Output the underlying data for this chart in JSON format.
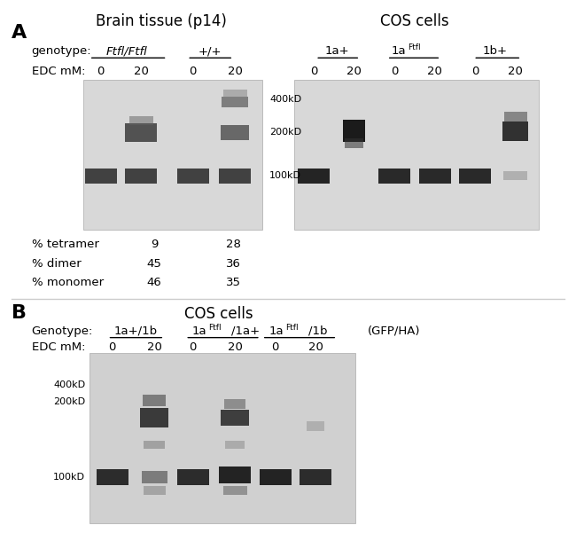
{
  "bg_color": "#ffffff",
  "gel_bg_A_left": "#d8d8d8",
  "gel_bg_A_right": "#d8d8d8",
  "gel_bg_B": "#d0d0d0",
  "panel_A": {
    "title_left": "Brain tissue (p14)",
    "title_right": "COS cells",
    "genotype_label": "genotype:",
    "edc_label": "EDC mM:",
    "stats_labels": [
      "% tetramer",
      "% dimer",
      "% monomer"
    ],
    "stats_values_ftfl": [
      "9",
      "45",
      "46"
    ],
    "stats_values_wt": [
      "28",
      "36",
      "35"
    ],
    "mw_labels": [
      "400kD",
      "200kD",
      "100kD"
    ]
  },
  "panel_B": {
    "title": "COS cells",
    "genotype_label": "Genotype:",
    "edc_label": "EDC mM:",
    "gfp_ha": "(GFP/HA)",
    "mw_labels": [
      "400kD",
      "200kD",
      "100kD"
    ]
  }
}
